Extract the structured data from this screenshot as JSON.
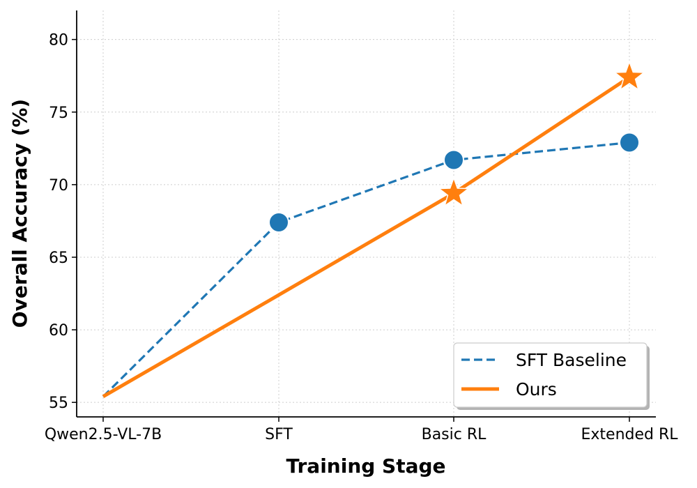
{
  "chart_data": {
    "type": "line",
    "categories": [
      "Qwen2.5-VL-7B",
      "SFT",
      "Basic RL",
      "Extended RL"
    ],
    "xlabel": "Training Stage",
    "ylabel": "Overall Accuracy (%)",
    "ylim": [
      54,
      82
    ],
    "yticks": [
      55,
      60,
      65,
      70,
      75,
      80
    ],
    "grid": true,
    "legend_position": "lower-right",
    "series": [
      {
        "name": "SFT Baseline",
        "values": [
          55.4,
          67.4,
          71.7,
          72.9
        ],
        "color": "#1f77b4",
        "line_style": "dashed",
        "marker": "circle",
        "marker_from_index": 1
      },
      {
        "name": "Ours",
        "values": [
          55.4,
          62.4,
          69.4,
          77.4
        ],
        "color": "#ff7f0e",
        "line_style": "solid",
        "marker": "star",
        "marker_from_index": 2
      }
    ]
  }
}
